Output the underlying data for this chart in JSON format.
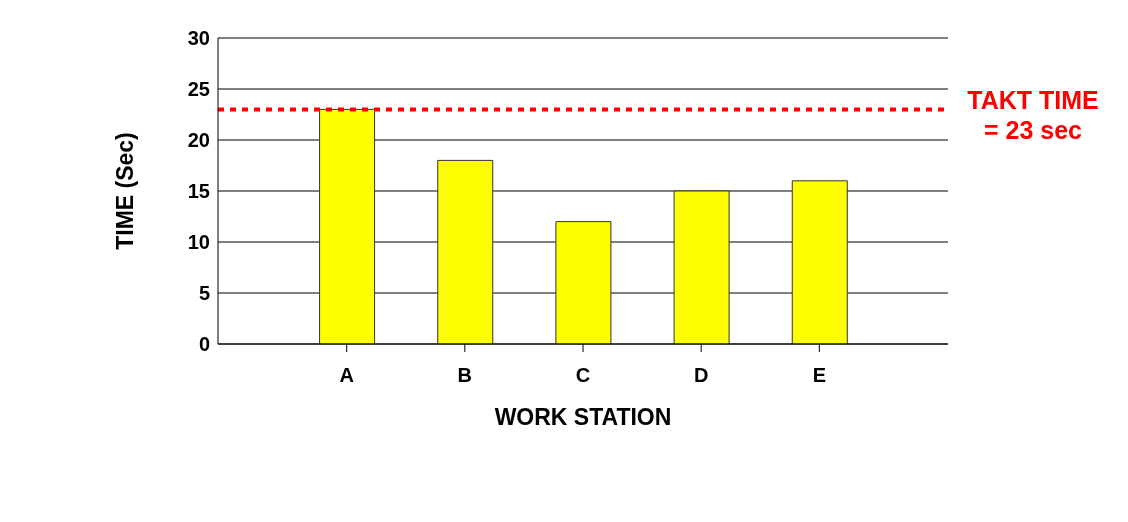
{
  "chart_data": {
    "type": "bar",
    "xlabel": "WORK STATION",
    "ylabel": "TIME (Sec)",
    "categories": [
      "A",
      "B",
      "C",
      "D",
      "E"
    ],
    "values": [
      23,
      18,
      12,
      15,
      16
    ],
    "color": "#ffff00",
    "ylim": [
      0,
      30
    ],
    "yticks": [
      0,
      5,
      10,
      15,
      20,
      25,
      30
    ],
    "grid": "y",
    "ref_lines": [
      {
        "axis": "y",
        "value": 23,
        "label": "TAKT TIME = 23 sec",
        "color": "#ff0000",
        "line_style": "dotted"
      }
    ]
  }
}
